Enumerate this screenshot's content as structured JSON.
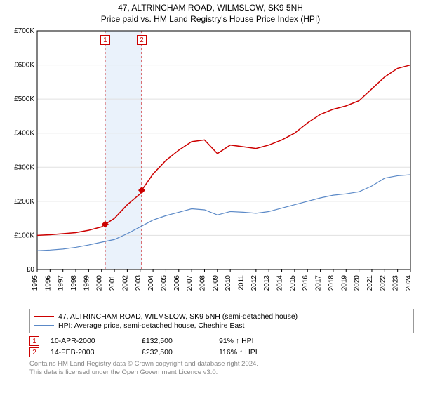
{
  "title": {
    "line1": "47, ALTRINCHAM ROAD, WILMSLOW, SK9 5NH",
    "line2": "Price paid vs. HM Land Registry's House Price Index (HPI)"
  },
  "chart": {
    "type": "line",
    "background_color": "#ffffff",
    "plot_border_color": "#000000",
    "grid_color": "#e0e0e0",
    "title_fontsize": 12,
    "axis_fontsize": 10,
    "x": {
      "min": 1995,
      "max": 2024,
      "ticks": [
        1995,
        1996,
        1997,
        1998,
        1999,
        2000,
        2001,
        2002,
        2003,
        2004,
        2005,
        2006,
        2007,
        2008,
        2009,
        2010,
        2011,
        2012,
        2013,
        2014,
        2015,
        2016,
        2017,
        2018,
        2019,
        2020,
        2021,
        2022,
        2023,
        2024
      ]
    },
    "y": {
      "min": 0,
      "max": 700000,
      "ticks": [
        0,
        100000,
        200000,
        300000,
        400000,
        500000,
        600000,
        700000
      ],
      "tick_labels": [
        "£0",
        "£100K",
        "£200K",
        "£300K",
        "£400K",
        "£500K",
        "£600K",
        "£700K"
      ]
    },
    "highlight_band": {
      "x_start": 2000.28,
      "x_end": 2003.12,
      "fill": "#eaf2fb"
    },
    "vlines": [
      {
        "x": 2000.28,
        "color": "#cc0000",
        "dash": "3,3"
      },
      {
        "x": 2003.12,
        "color": "#cc0000",
        "dash": "3,3"
      }
    ],
    "series": [
      {
        "name": "property",
        "color": "#cc0000",
        "line_width": 1.5,
        "points": [
          [
            1995,
            100000
          ],
          [
            1996,
            102000
          ],
          [
            1997,
            105000
          ],
          [
            1998,
            108000
          ],
          [
            1999,
            115000
          ],
          [
            2000,
            125000
          ],
          [
            2000.28,
            132500
          ],
          [
            2001,
            150000
          ],
          [
            2002,
            190000
          ],
          [
            2003,
            222000
          ],
          [
            2003.12,
            232500
          ],
          [
            2004,
            280000
          ],
          [
            2005,
            320000
          ],
          [
            2006,
            350000
          ],
          [
            2007,
            375000
          ],
          [
            2008,
            380000
          ],
          [
            2009,
            340000
          ],
          [
            2010,
            365000
          ],
          [
            2011,
            360000
          ],
          [
            2012,
            355000
          ],
          [
            2013,
            365000
          ],
          [
            2014,
            380000
          ],
          [
            2015,
            400000
          ],
          [
            2016,
            430000
          ],
          [
            2017,
            455000
          ],
          [
            2018,
            470000
          ],
          [
            2019,
            480000
          ],
          [
            2020,
            495000
          ],
          [
            2021,
            530000
          ],
          [
            2022,
            565000
          ],
          [
            2023,
            590000
          ],
          [
            2024,
            600000
          ]
        ]
      },
      {
        "name": "hpi",
        "color": "#5b89c7",
        "line_width": 1.2,
        "points": [
          [
            1995,
            55000
          ],
          [
            1996,
            57000
          ],
          [
            1997,
            60000
          ],
          [
            1998,
            65000
          ],
          [
            1999,
            72000
          ],
          [
            2000,
            80000
          ],
          [
            2001,
            88000
          ],
          [
            2002,
            105000
          ],
          [
            2003,
            125000
          ],
          [
            2004,
            145000
          ],
          [
            2005,
            158000
          ],
          [
            2006,
            168000
          ],
          [
            2007,
            178000
          ],
          [
            2008,
            175000
          ],
          [
            2009,
            160000
          ],
          [
            2010,
            170000
          ],
          [
            2011,
            168000
          ],
          [
            2012,
            165000
          ],
          [
            2013,
            170000
          ],
          [
            2014,
            180000
          ],
          [
            2015,
            190000
          ],
          [
            2016,
            200000
          ],
          [
            2017,
            210000
          ],
          [
            2018,
            218000
          ],
          [
            2019,
            222000
          ],
          [
            2020,
            228000
          ],
          [
            2021,
            245000
          ],
          [
            2022,
            268000
          ],
          [
            2023,
            275000
          ],
          [
            2024,
            278000
          ]
        ]
      }
    ],
    "markers": [
      {
        "x": 2000.28,
        "y": 132500,
        "fill": "#cc0000",
        "size": 5,
        "shape": "diamond",
        "callout": "1"
      },
      {
        "x": 2003.12,
        "y": 232500,
        "fill": "#cc0000",
        "size": 5,
        "shape": "diamond",
        "callout": "2"
      }
    ],
    "callout_box": {
      "border_color": "#cc0000",
      "text_color": "#cc0000"
    }
  },
  "legend": {
    "items": [
      {
        "color": "#cc0000",
        "label": "47, ALTRINCHAM ROAD, WILMSLOW, SK9 5NH (semi-detached house)"
      },
      {
        "color": "#5b89c7",
        "label": "HPI: Average price, semi-detached house, Cheshire East"
      }
    ]
  },
  "transactions": [
    {
      "num": "1",
      "date": "10-APR-2000",
      "price": "£132,500",
      "rel": "91% ↑ HPI",
      "box_color": "#cc0000"
    },
    {
      "num": "2",
      "date": "14-FEB-2003",
      "price": "£232,500",
      "rel": "116% ↑ HPI",
      "box_color": "#cc0000"
    }
  ],
  "footer": {
    "line1": "Contains HM Land Registry data © Crown copyright and database right 2024.",
    "line2": "This data is licensed under the Open Government Licence v3.0."
  }
}
